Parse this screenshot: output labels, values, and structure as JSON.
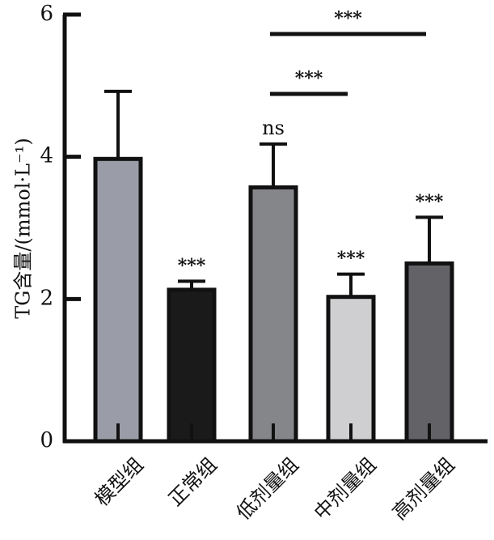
{
  "chart_data": {
    "type": "bar",
    "title": "",
    "xlabel": "",
    "ylabel": "TG含量/(mmol·L⁻¹)",
    "ylim": [
      0,
      6
    ],
    "yticks": [
      0,
      2,
      4,
      6
    ],
    "categories": [
      "模型组",
      "正常组",
      "低剂量组",
      "中剂量组",
      "高剂量组"
    ],
    "values": [
      3.97,
      2.13,
      3.57,
      2.03,
      2.5
    ],
    "errors": [
      0.95,
      0.12,
      0.61,
      0.32,
      0.65
    ],
    "colors": [
      "#9a9da7",
      "#1a1a1a",
      "#85868a",
      "#cfcfd1",
      "#626267"
    ],
    "significance": [
      "",
      "***",
      "ns",
      "***",
      "***"
    ],
    "comparisons": [
      {
        "from": 2,
        "to": 3,
        "label": "***"
      },
      {
        "from": 2,
        "to": 4,
        "label": "***"
      }
    ]
  }
}
